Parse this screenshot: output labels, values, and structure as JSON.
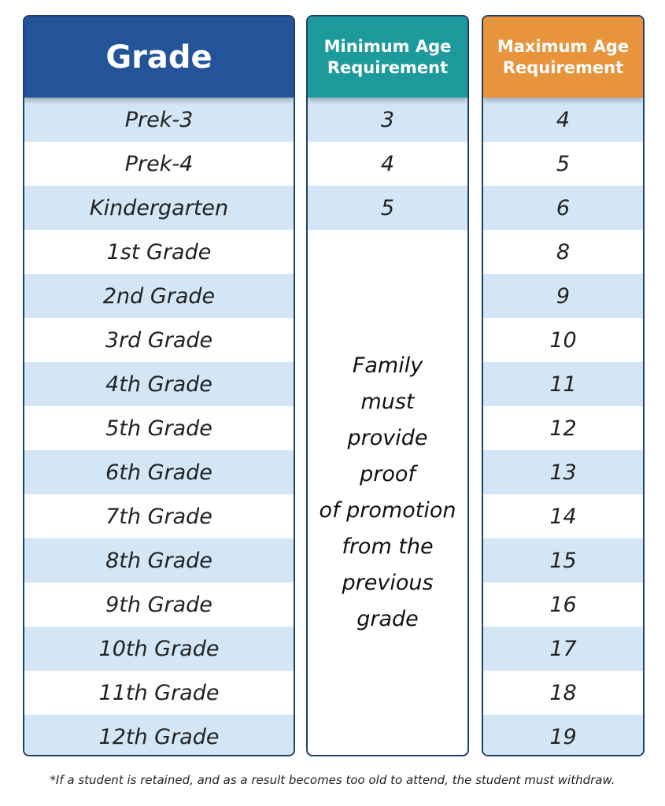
{
  "header": {
    "grade": "Grade",
    "min": "Minimum Age Requirement",
    "max": "Maximum Age Requirement"
  },
  "table": {
    "rows": [
      {
        "grade": "Prek-3",
        "min": 3,
        "max": 4
      },
      {
        "grade": "Prek-4",
        "min": 4,
        "max": 5
      },
      {
        "grade": "Kindergarten",
        "min": 5,
        "max": 6
      },
      {
        "grade": "1st Grade",
        "max": 8
      },
      {
        "grade": "2nd Grade",
        "max": 9
      },
      {
        "grade": "3rd Grade",
        "max": 10
      },
      {
        "grade": "4th Grade",
        "max": 11
      },
      {
        "grade": "5th Grade",
        "max": 12
      },
      {
        "grade": "6th Grade",
        "max": 13
      },
      {
        "grade": "7th Grade",
        "max": 14
      },
      {
        "grade": "8th Grade",
        "max": 15
      },
      {
        "grade": "9th Grade",
        "max": 16
      },
      {
        "grade": "10th Grade",
        "max": 17
      },
      {
        "grade": "11th Grade",
        "max": 18
      },
      {
        "grade": "12th Grade",
        "max": 19
      }
    ]
  },
  "note_lines": [
    "Family",
    "must",
    "provide",
    "proof",
    "of promotion",
    "from the",
    "previous",
    "grade"
  ],
  "footnote": "*If a student is retained, and as a result becomes too old to attend, the student must withdraw."
}
